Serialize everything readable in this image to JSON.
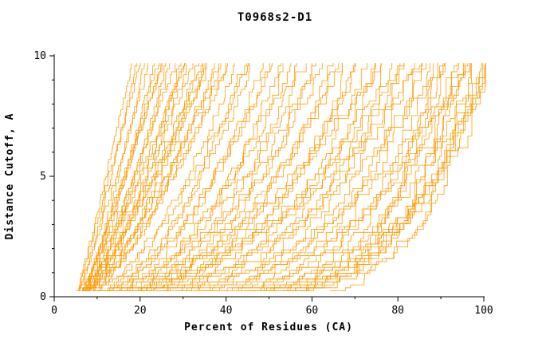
{
  "chart_data": {
    "type": "line",
    "title": "T0968s2-D1",
    "xlabel": "Percent of Residues (CA)",
    "ylabel": "Distance Cutoff, A",
    "xlim": [
      0,
      100
    ],
    "ylim": [
      0,
      10
    ],
    "x_ticks": [
      0,
      20,
      40,
      60,
      80,
      100
    ],
    "y_ticks": [
      0,
      5,
      10
    ],
    "x_minor_step": 10,
    "y_minor_step": 1,
    "grid": false,
    "legend": null,
    "curve_color": "#FF9900",
    "axis_color": "#000000",
    "background_color": "#FFFFFF",
    "y_start": 0.25,
    "y_top": 9.7,
    "curve_count": 81,
    "curves": [
      [
        5.0,
        18,
        1.05
      ],
      [
        5.5,
        19,
        1.15
      ],
      [
        5.0,
        20,
        1.0
      ],
      [
        6.0,
        21,
        1.25
      ],
      [
        5.0,
        22,
        1.1
      ],
      [
        6.0,
        23,
        1.35
      ],
      [
        5.5,
        24,
        1.15
      ],
      [
        6.0,
        25,
        1.1
      ],
      [
        5.0,
        26,
        1.45
      ],
      [
        6.5,
        27,
        1.3
      ],
      [
        5.0,
        28,
        1.2
      ],
      [
        6.0,
        29,
        1.55
      ],
      [
        5.5,
        30,
        1.25
      ],
      [
        6.0,
        31,
        1.4
      ],
      [
        5.0,
        32,
        1.3
      ],
      [
        6.0,
        33,
        1.65
      ],
      [
        5.5,
        34,
        1.3
      ],
      [
        6.0,
        35,
        1.5
      ],
      [
        5.0,
        36,
        1.25
      ],
      [
        6.0,
        37,
        1.6
      ],
      [
        5.5,
        38,
        1.4
      ],
      [
        6.0,
        39,
        1.3
      ],
      [
        5.0,
        40,
        1.5
      ],
      [
        5.0,
        42,
        1.8
      ],
      [
        6.0,
        44,
        2.0
      ],
      [
        5.5,
        46,
        1.9
      ],
      [
        6.0,
        48,
        2.2
      ],
      [
        5.0,
        50,
        2.0
      ],
      [
        6.0,
        52,
        2.4
      ],
      [
        5.5,
        54,
        2.1
      ],
      [
        6.0,
        56,
        2.5
      ],
      [
        5.0,
        58,
        2.2
      ],
      [
        6.0,
        60,
        2.6
      ],
      [
        5.5,
        62,
        2.3
      ],
      [
        6.0,
        64,
        2.8
      ],
      [
        5.0,
        66,
        2.4
      ],
      [
        6.0,
        68,
        3.0
      ],
      [
        5.5,
        70,
        2.5
      ],
      [
        5.0,
        72,
        3.2
      ],
      [
        6.0,
        74,
        3.5
      ],
      [
        5.5,
        76,
        3.8
      ],
      [
        6.0,
        78,
        4.0
      ],
      [
        5.0,
        80,
        4.2
      ],
      [
        6.0,
        82,
        4.5
      ],
      [
        5.5,
        84,
        4.8
      ],
      [
        6.0,
        86,
        5.0
      ],
      [
        5.0,
        88,
        5.2
      ],
      [
        6.0,
        90,
        5.5
      ],
      [
        5.5,
        92,
        5.0
      ],
      [
        6.0,
        94,
        5.8
      ],
      [
        5.0,
        96,
        6.0
      ],
      [
        6.0,
        98,
        5.5
      ],
      [
        5.5,
        100,
        6.2
      ],
      [
        6.0,
        100,
        4.5
      ],
      [
        5.0,
        99,
        5.0
      ],
      [
        7.0,
        25,
        1.0
      ],
      [
        7.0,
        30,
        1.1
      ],
      [
        7.0,
        35,
        1.2
      ],
      [
        7.0,
        40,
        1.4
      ],
      [
        7.0,
        45,
        1.6
      ],
      [
        7.0,
        50,
        1.8
      ],
      [
        7.0,
        55,
        2.0
      ],
      [
        7.0,
        60,
        2.2
      ],
      [
        7.0,
        65,
        2.4
      ],
      [
        7.0,
        70,
        2.6
      ],
      [
        7.0,
        75,
        2.8
      ],
      [
        7.0,
        80,
        3.0
      ],
      [
        8.0,
        85,
        3.5
      ],
      [
        8.0,
        90,
        4.0
      ],
      [
        8.0,
        95,
        4.5
      ],
      [
        8.0,
        100,
        5.0
      ],
      [
        6.0,
        85,
        2.0
      ],
      [
        6.0,
        90,
        2.2
      ],
      [
        6.0,
        95,
        2.5
      ],
      [
        6.0,
        100,
        2.8
      ],
      [
        5.0,
        75,
        2.0
      ],
      [
        5.0,
        80,
        2.2
      ],
      [
        6.0,
        92,
        7.0
      ],
      [
        6.0,
        96,
        8.0
      ],
      [
        5.0,
        88,
        7.0
      ],
      [
        7.0,
        94,
        6.5
      ]
    ]
  }
}
